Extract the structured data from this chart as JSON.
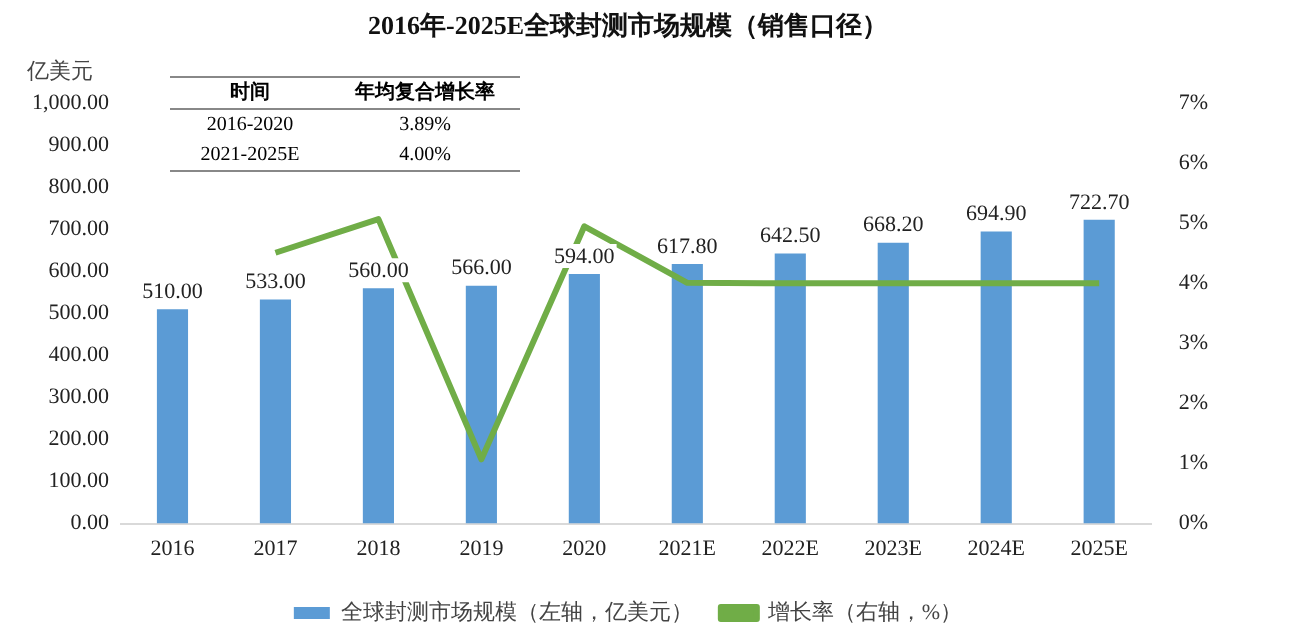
{
  "chart_data": {
    "type": "bar",
    "title": "2016年-2025E全球封测市场规模（销售口径）",
    "ylabel": "亿美元",
    "categories": [
      "2016",
      "2017",
      "2018",
      "2019",
      "2020",
      "2021E",
      "2022E",
      "2023E",
      "2024E",
      "2025E"
    ],
    "series": [
      {
        "name": "全球封测市场规模（左轴，亿美元）",
        "color": "#5b9bd5",
        "values": [
          510.0,
          533.0,
          560.0,
          566.0,
          594.0,
          617.8,
          642.5,
          668.2,
          694.9,
          722.7
        ],
        "value_labels": [
          "510.00",
          "533.00",
          "560.00",
          "566.00",
          "594.00",
          "617.80",
          "642.50",
          "668.20",
          "694.90",
          "722.70"
        ]
      },
      {
        "name": "增长率（右轴，%）",
        "type": "line",
        "axis": "y2",
        "color": "#70ad47",
        "values": [
          null,
          4.51,
          5.07,
          1.07,
          4.95,
          4.01,
          4.0,
          4.0,
          4.0,
          4.0
        ]
      }
    ],
    "ylim": [
      0,
      1000
    ],
    "yticks": [
      {
        "value": 0,
        "label": "0.00"
      },
      {
        "value": 100,
        "label": "100.00"
      },
      {
        "value": 200,
        "label": "200.00"
      },
      {
        "value": 300,
        "label": "300.00"
      },
      {
        "value": 400,
        "label": "400.00"
      },
      {
        "value": 500,
        "label": "500.00"
      },
      {
        "value": 600,
        "label": "600.00"
      },
      {
        "value": 700,
        "label": "700.00"
      },
      {
        "value": 800,
        "label": "800.00"
      },
      {
        "value": 900,
        "label": "900.00"
      },
      {
        "value": 1000,
        "label": "1,000.00"
      }
    ],
    "y2lim": [
      0,
      7
    ],
    "y2ticks": [
      {
        "value": 0,
        "label": "0%"
      },
      {
        "value": 1,
        "label": "1%"
      },
      {
        "value": 2,
        "label": "2%"
      },
      {
        "value": 3,
        "label": "3%"
      },
      {
        "value": 4,
        "label": "4%"
      },
      {
        "value": 5,
        "label": "5%"
      },
      {
        "value": 6,
        "label": "6%"
      },
      {
        "value": 7,
        "label": "7%"
      }
    ],
    "annotations": [
      "时间",
      "年均复合增长率",
      "2016-2020",
      "3.89%",
      "2021-2025E",
      "4.00%"
    ],
    "legend": "bottom",
    "grid": false,
    "marker": "none"
  }
}
